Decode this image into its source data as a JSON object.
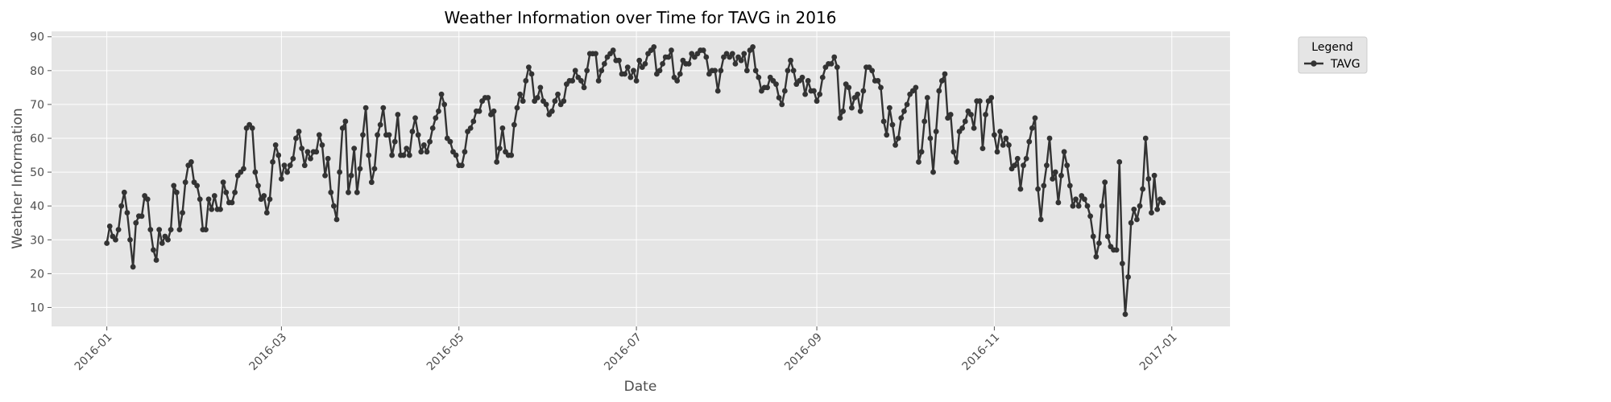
{
  "chart_data": {
    "type": "line",
    "title": "Weather Information over Time for TAVG in 2016",
    "xlabel": "Date",
    "ylabel": "Weather Information",
    "ylim": [
      4.4,
      91.6
    ],
    "x_range": [
      "2015-12-13",
      "2017-01-21"
    ],
    "y_ticks": [
      10,
      20,
      30,
      40,
      50,
      60,
      70,
      80,
      90
    ],
    "x_ticks": [
      "2016-01",
      "2016-03",
      "2016-05",
      "2016-07",
      "2016-09",
      "2016-11",
      "2017-01"
    ],
    "grid": true,
    "legend": {
      "title": "Legend",
      "location": "outside-upper-right",
      "entries": [
        "TAVG"
      ]
    },
    "colors": {
      "line": "#333333",
      "plot_bg": "#e5e5e5",
      "grid": "#ffffff",
      "legend_bg": "#e5e5e5"
    },
    "series": [
      {
        "name": "TAVG",
        "start_date": "2016-01-01",
        "interval": "daily",
        "values": [
          29,
          34,
          31,
          30,
          33,
          40,
          44,
          38,
          30,
          22,
          35,
          37,
          37,
          43,
          42,
          33,
          27,
          24,
          33,
          29,
          31,
          30,
          33,
          46,
          44,
          33,
          38,
          47,
          52,
          53,
          47,
          46,
          42,
          33,
          33,
          42,
          39,
          43,
          39,
          39,
          47,
          44,
          41,
          41,
          44,
          49,
          50,
          51,
          63,
          64,
          63,
          50,
          46,
          42,
          43,
          38,
          42,
          53,
          58,
          55,
          48,
          52,
          50,
          52,
          54,
          60,
          62,
          57,
          52,
          56,
          54,
          56,
          56,
          61,
          58,
          49,
          54,
          44,
          40,
          36,
          50,
          63,
          65,
          44,
          49,
          57,
          44,
          51,
          61,
          69,
          55,
          47,
          51,
          61,
          64,
          69,
          61,
          61,
          55,
          59,
          67,
          55,
          55,
          57,
          55,
          62,
          66,
          61,
          56,
          58,
          56,
          59,
          63,
          66,
          68,
          73,
          70,
          60,
          59,
          56,
          55,
          52,
          52,
          56,
          62,
          63,
          65,
          68,
          68,
          71,
          72,
          72,
          67,
          68,
          53,
          57,
          63,
          56,
          55,
          55,
          64,
          69,
          73,
          71,
          77,
          81,
          79,
          71,
          72,
          75,
          71,
          70,
          67,
          68,
          71,
          73,
          70,
          71,
          76,
          77,
          77,
          80,
          78,
          77,
          75,
          80,
          85,
          85,
          85,
          77,
          80,
          82,
          84,
          85,
          86,
          83,
          83,
          79,
          79,
          81,
          78,
          80,
          77,
          83,
          81,
          82,
          85,
          86,
          87,
          79,
          80,
          82,
          84,
          84,
          86,
          78,
          77,
          79,
          83,
          82,
          82,
          85,
          84,
          85,
          86,
          86,
          84,
          79,
          80,
          80,
          74,
          80,
          84,
          85,
          84,
          85,
          82,
          84,
          83,
          85,
          80,
          86,
          87,
          80,
          78,
          74,
          75,
          75,
          78,
          77,
          76,
          72,
          70,
          74,
          80,
          83,
          80,
          76,
          77,
          78,
          73,
          77,
          74,
          74,
          71,
          73,
          78,
          81,
          82,
          82,
          84,
          81,
          66,
          68,
          76,
          75,
          69,
          72,
          73,
          68,
          74,
          81,
          81,
          80,
          77,
          77,
          75,
          65,
          61,
          69,
          64,
          58,
          60,
          66,
          68,
          70,
          73,
          74,
          75,
          53,
          56,
          65,
          72,
          60,
          50,
          62,
          74,
          77,
          79,
          66,
          67,
          56,
          53,
          62,
          63,
          65,
          68,
          67,
          63,
          71,
          71,
          57,
          67,
          71,
          72,
          61,
          56,
          62,
          58,
          60,
          58,
          51,
          52,
          54,
          45,
          52,
          54,
          59,
          63,
          66,
          45,
          36,
          46,
          52,
          60,
          48,
          50,
          41,
          49,
          56,
          52,
          46,
          40,
          42,
          40,
          43,
          42,
          40,
          37,
          31,
          25,
          29,
          40,
          47,
          31,
          28,
          27,
          27,
          53,
          23,
          8,
          19,
          35,
          39,
          36,
          40,
          45,
          60,
          48,
          38,
          49,
          39,
          42,
          41
        ]
      }
    ]
  }
}
